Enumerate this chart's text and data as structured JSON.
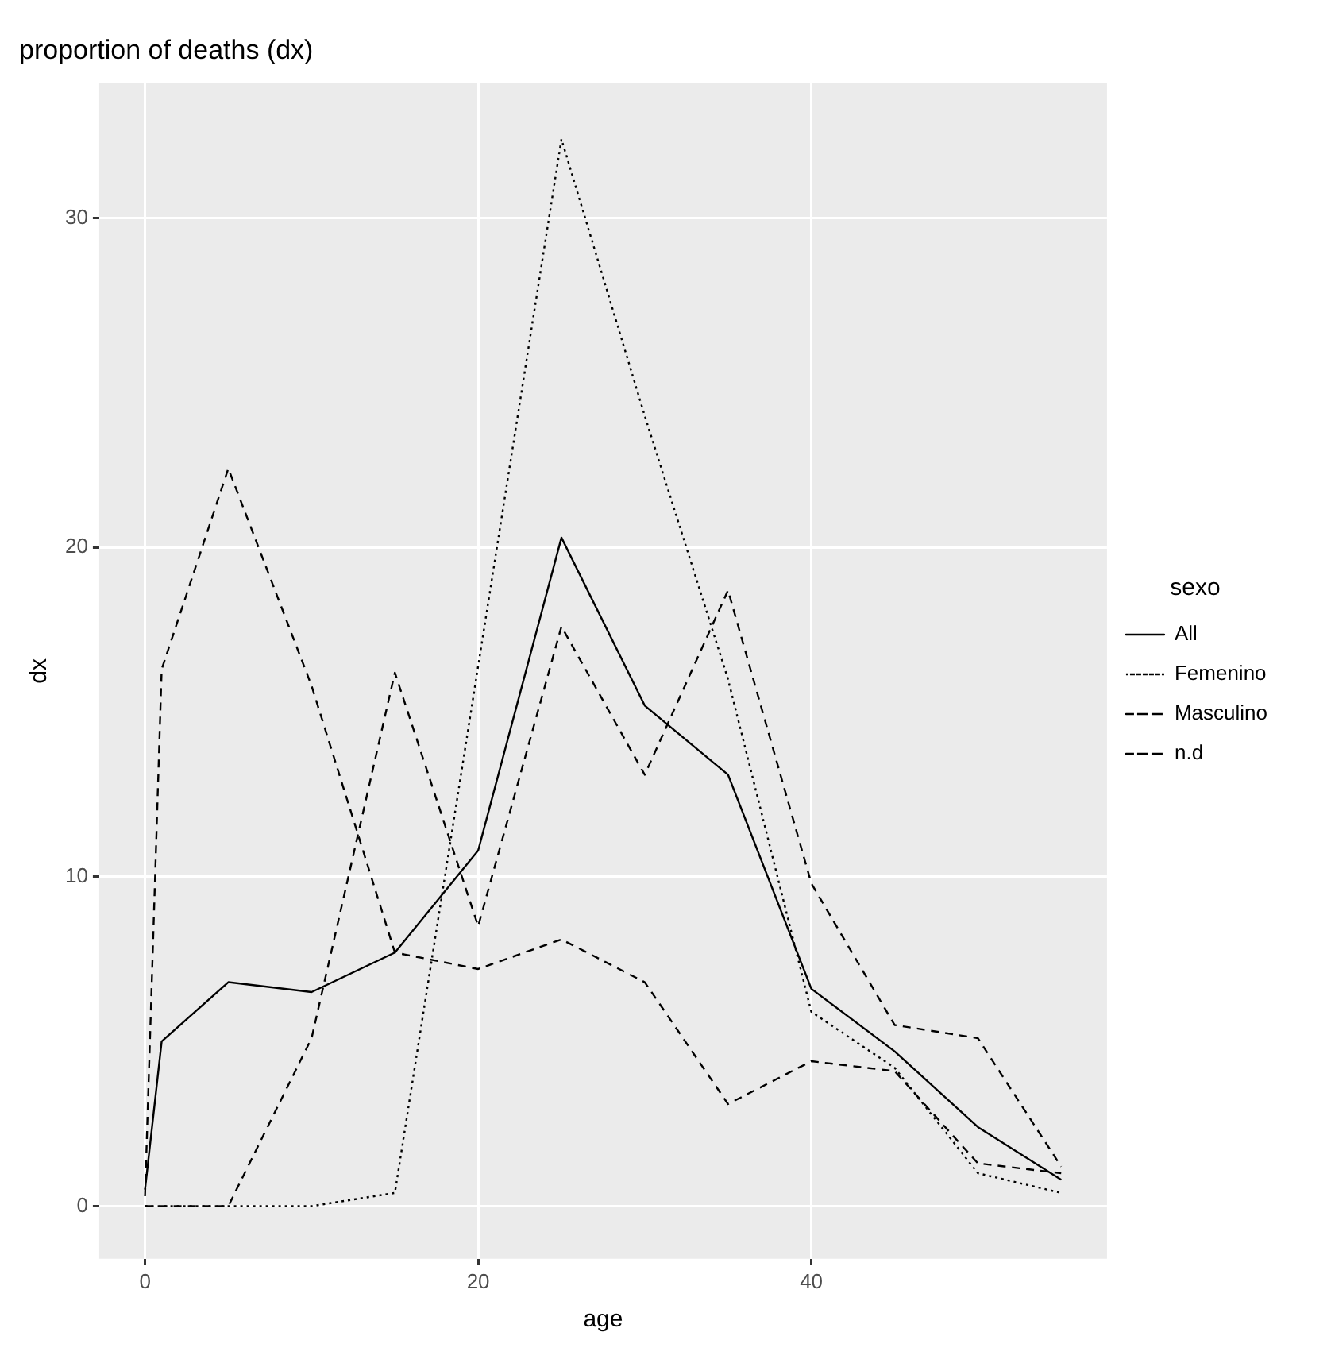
{
  "chart_data": {
    "type": "line",
    "title": "proportion of deaths (dx)",
    "xlabel": "age",
    "ylabel": "dx",
    "legend_title": "sexo",
    "x": [
      0,
      1,
      5,
      10,
      15,
      20,
      25,
      30,
      35,
      40,
      45,
      50,
      55
    ],
    "series": [
      {
        "name": "All",
        "color": "#000000",
        "line_style": "solid",
        "values": [
          0.5,
          5.0,
          6.8,
          6.5,
          7.7,
          10.8,
          20.3,
          15.2,
          13.1,
          6.6,
          4.7,
          2.4,
          0.8
        ]
      },
      {
        "name": "Femenino",
        "color": "#000000",
        "line_style": "dotted",
        "values": [
          0,
          0,
          0,
          0,
          0.4,
          16.4,
          32.4,
          24.0,
          16.0,
          5.9,
          4.2,
          1.0,
          0.4
        ]
      },
      {
        "name": "Masculino",
        "color": "#000000",
        "line_style": "dashed",
        "values": [
          0,
          0,
          0,
          5.1,
          16.2,
          8.5,
          17.6,
          13.1,
          18.7,
          9.8,
          5.5,
          5.1,
          1.2
        ]
      },
      {
        "name": "n.d",
        "color": "#000000",
        "line_style": "dashed",
        "values": [
          0.3,
          16.3,
          22.4,
          15.8,
          7.7,
          7.2,
          8.1,
          6.8,
          3.1,
          4.4,
          4.1,
          1.3,
          1.0
        ]
      }
    ],
    "xlim": [
      -2.75,
      57.75
    ],
    "xticks": [
      0,
      20,
      40
    ],
    "ylim": [
      -1.6,
      34.1
    ],
    "yticks": [
      0,
      10,
      20,
      30
    ],
    "grid": true,
    "legend": "right",
    "marker": "none"
  }
}
